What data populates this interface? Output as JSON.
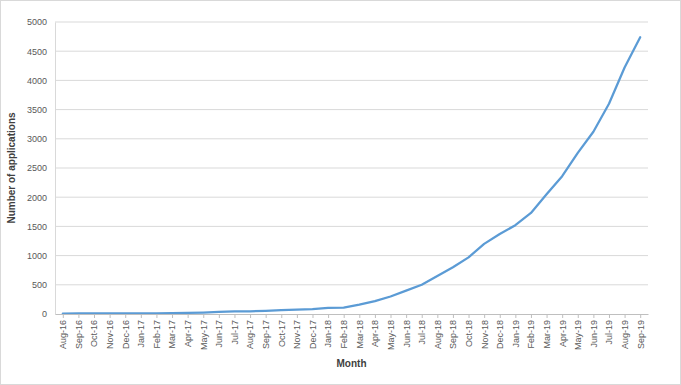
{
  "chart_data": {
    "type": "line",
    "x_label": "Month",
    "y_label": "Number of applications",
    "categories": [
      "Aug-16",
      "Sep-16",
      "Oct-16",
      "Nov-16",
      "Dec-16",
      "Jan-17",
      "Feb-17",
      "Mar-17",
      "Apr-17",
      "May-17",
      "Jun-17",
      "Jul-17",
      "Aug-17",
      "Sep-17",
      "Oct-17",
      "Nov-17",
      "Dec-17",
      "Jan-18",
      "Feb-18",
      "Mar-18",
      "Apr-18",
      "May-18",
      "Jun-18",
      "Jul-18",
      "Aug-18",
      "Sep-18",
      "Oct-18",
      "Nov-18",
      "Dec-18",
      "Jan-19",
      "Feb-19",
      "Mar-19",
      "Apr-19",
      "May-19",
      "Jun-19",
      "Jul-19",
      "Aug-19",
      "Sep-19"
    ],
    "values": [
      5,
      10,
      12,
      12,
      12,
      12,
      12,
      15,
      20,
      25,
      35,
      45,
      45,
      55,
      65,
      75,
      85,
      105,
      110,
      160,
      220,
      300,
      400,
      500,
      650,
      800,
      970,
      1200,
      1370,
      1520,
      1730,
      2050,
      2360,
      2760,
      3120,
      3600,
      4220,
      4740
    ],
    "color": "#5b9bd5",
    "ylim": [
      0,
      5000
    ],
    "yticks": [
      0,
      500,
      1000,
      1500,
      2000,
      2500,
      3000,
      3500,
      4000,
      4500,
      5000
    ],
    "grid": true
  }
}
